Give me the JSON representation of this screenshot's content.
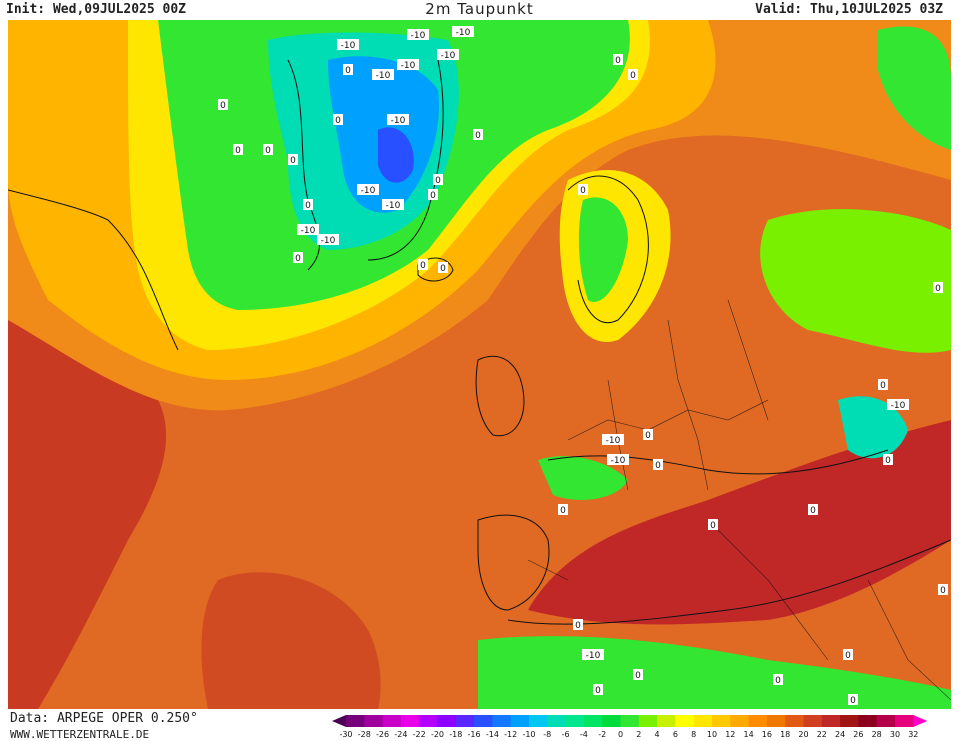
{
  "header": {
    "init": "Init: Wed,09JUL2025 00Z",
    "title": "2m Taupunkt",
    "valid": "Valid: Thu,10JUL2025 03Z"
  },
  "footer": {
    "data": "Data: ARPEGE OPER 0.250°",
    "site": "WWW.WETTERZENTRALE.DE"
  },
  "legend": {
    "ticks": [
      "-30",
      "-28",
      "-26",
      "-24",
      "-22",
      "-20",
      "-18",
      "-16",
      "-14",
      "-12",
      "-10",
      "-8",
      "-6",
      "-4",
      "-2",
      "0",
      "2",
      "4",
      "6",
      "8",
      "10",
      "12",
      "14",
      "16",
      "18",
      "20",
      "22",
      "24",
      "26",
      "28",
      "30",
      "32"
    ],
    "colors": [
      "#4b0055",
      "#76007a",
      "#a0009e",
      "#c800c8",
      "#e800e8",
      "#b400ff",
      "#8c00ff",
      "#5a28ff",
      "#2850ff",
      "#1478ff",
      "#00a0ff",
      "#00c8f0",
      "#00dcb4",
      "#00e68c",
      "#00e664",
      "#00dc3c",
      "#32e632",
      "#78f000",
      "#c8f000",
      "#ffff00",
      "#ffe600",
      "#ffc800",
      "#ffaa00",
      "#ff8c00",
      "#f07800",
      "#e05a14",
      "#d04020",
      "#c02828",
      "#a01414",
      "#8c001e",
      "#b4004b",
      "#e6007d",
      "#ff00c8"
    ]
  },
  "map": {
    "contour_labels": [
      "0",
      "-10"
    ]
  }
}
